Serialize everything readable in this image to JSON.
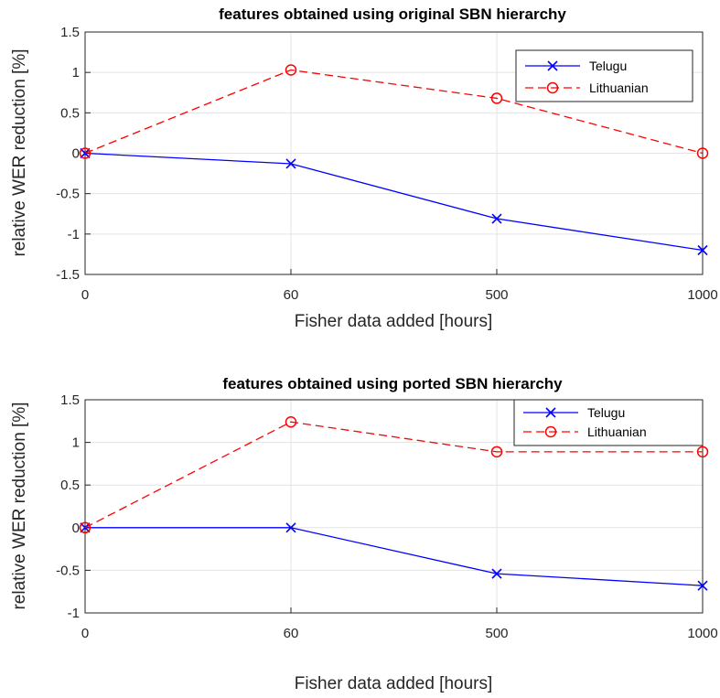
{
  "chart_data": [
    {
      "type": "line",
      "title": "features obtained using original SBN hierarchy",
      "xlabel": "Fisher data added [hours]",
      "ylabel": "relative WER reduction [%]",
      "categories": [
        "0",
        "60",
        "500",
        "1000"
      ],
      "ylim": [
        -1.5,
        1.5
      ],
      "yticks": [
        "1.5",
        "1",
        "0.5",
        "0",
        "-0.5",
        "-1",
        "-1.5"
      ],
      "ytick_values": [
        1.5,
        1,
        0.5,
        0,
        -0.5,
        -1,
        -1.5
      ],
      "grid": true,
      "legend_position": "top-right",
      "series": [
        {
          "name": "Telugu",
          "values": [
            0,
            -0.13,
            -0.81,
            -1.2
          ],
          "color": "#0000ff",
          "style": "solid",
          "marker": "x"
        },
        {
          "name": "Lithuanian",
          "values": [
            0,
            1.03,
            0.68,
            0
          ],
          "color": "#ff0000",
          "style": "dashed",
          "marker": "o"
        }
      ]
    },
    {
      "type": "line",
      "title": "features obtained using ported SBN hierarchy",
      "xlabel": "Fisher data added [hours]",
      "ylabel": "relative WER reduction [%]",
      "categories": [
        "0",
        "60",
        "500",
        "1000"
      ],
      "ylim": [
        -1,
        1.5
      ],
      "yticks": [
        "1.5",
        "1",
        "0.5",
        "0",
        "-0.5",
        "-1"
      ],
      "ytick_values": [
        1.5,
        1,
        0.5,
        0,
        -0.5,
        -1
      ],
      "grid": true,
      "legend_position": "top-right",
      "series": [
        {
          "name": "Telugu",
          "values": [
            0,
            0,
            -0.54,
            -0.68
          ],
          "color": "#0000ff",
          "style": "solid",
          "marker": "x"
        },
        {
          "name": "Lithuanian",
          "values": [
            0,
            1.24,
            0.89,
            0.89
          ],
          "color": "#ff0000",
          "style": "dashed",
          "marker": "o"
        }
      ]
    }
  ]
}
